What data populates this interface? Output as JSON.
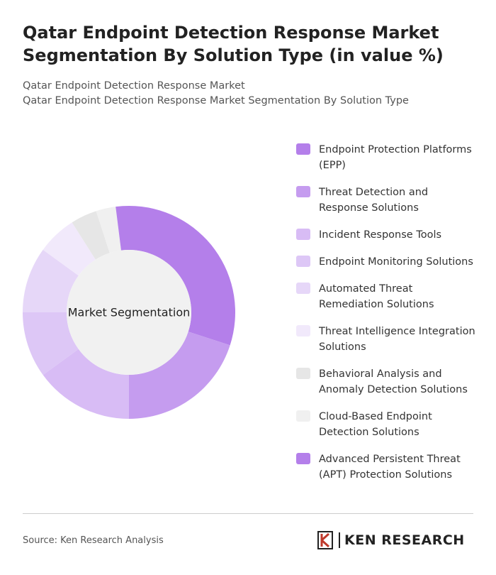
{
  "chart_data": {
    "type": "donut",
    "title": "Qatar Endpoint Detection Response Market Segmentation By Solution Type (in value %)",
    "subtitle": [
      "Qatar Endpoint Detection Response Market",
      "Qatar Endpoint Detection Response Market Segmentation By Solution Type"
    ],
    "center_label": "Market Segmentation",
    "categories": [
      "Endpoint Protection Platforms (EPP)",
      "Threat Detection and Response Solutions",
      "Incident Response Tools",
      "Endpoint Monitoring Solutions",
      "Automated Threat Remediation Solutions",
      "Threat Intelligence Integration Solutions",
      "Behavioral Analysis and Anomaly Detection Solutions",
      "Cloud-Based Endpoint Detection Solutions",
      "Advanced Persistent Threat (APT) Protection Solutions"
    ],
    "values": [
      30,
      20,
      15,
      10,
      10,
      6,
      4,
      3,
      2
    ],
    "colors": [
      "#b47fea",
      "#c59cef",
      "#d8bcf5",
      "#ddc7f6",
      "#e6d7f8",
      "#f1e9fb",
      "#e6e6e6",
      "#f0f0f0",
      "#b47fea"
    ],
    "source": "Source: Ken Research Analysis",
    "brand": "KEN RESEARCH"
  }
}
